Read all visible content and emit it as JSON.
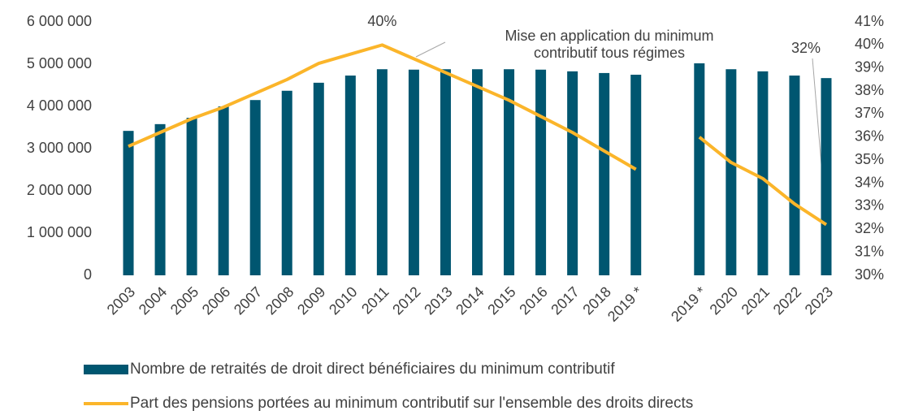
{
  "chart_data": {
    "type": "bar",
    "categories": [
      "2003",
      "2004",
      "2005",
      "2006",
      "2007",
      "2008",
      "2009",
      "2010",
      "2011",
      "2012",
      "2013",
      "2014",
      "2015",
      "2016",
      "2017",
      "2018",
      "2019 *",
      null,
      "2019 *",
      "2020",
      "2021",
      "2022",
      "2023"
    ],
    "series": [
      {
        "name": "Nombre de retraités de droit direct bénéficiaires du minimum contributif",
        "type": "bar",
        "color": "#005670",
        "values": [
          3420000,
          3580000,
          3730000,
          4000000,
          4150000,
          4370000,
          4560000,
          4730000,
          4880000,
          4870000,
          4880000,
          4880000,
          4880000,
          4870000,
          4830000,
          4790000,
          4750000,
          null,
          5020000,
          4880000,
          4830000,
          4730000,
          4670000
        ]
      },
      {
        "name": "Part des pensions portées au minimum contributif sur l'ensemble des droits directs",
        "type": "line",
        "color": "#fbb52a",
        "axis": "y2",
        "values": [
          35.6,
          36.2,
          36.8,
          37.3,
          37.9,
          38.5,
          39.2,
          39.6,
          40,
          39.4,
          38.8,
          38.2,
          37.6,
          36.9,
          36.2,
          35.4,
          34.6,
          null,
          36.0,
          34.9,
          34.2,
          33.1,
          32.2
        ],
        "value_labels": [
          null,
          null,
          null,
          null,
          null,
          null,
          null,
          null,
          "40%",
          null,
          null,
          null,
          null,
          null,
          null,
          null,
          null,
          null,
          null,
          null,
          null,
          null,
          "32%"
        ]
      }
    ],
    "ylim": [
      0,
      6000000
    ],
    "yticks": [
      0,
      {
        "value": 1000000,
        "label": "1 000 000"
      },
      {
        "value": 2000000,
        "label": "2 000 000"
      },
      {
        "value": 3000000,
        "label": "3 000 000"
      },
      {
        "value": 4000000,
        "label": "4 000 000"
      },
      {
        "value": 5000000,
        "label": "5 000 000"
      },
      {
        "value": 6000000,
        "label": "6 000 000"
      }
    ],
    "y2lim": [
      30,
      41
    ],
    "y2ticks": [
      {
        "value": 30,
        "label": "30%"
      },
      {
        "value": 31,
        "label": "31%"
      },
      {
        "value": 32,
        "label": "32%"
      },
      {
        "value": 33,
        "label": "33%"
      },
      {
        "value": 34,
        "label": "34%"
      },
      {
        "value": 35,
        "label": "35%"
      },
      {
        "value": 36,
        "label": "36%"
      },
      {
        "value": 37,
        "label": "37%"
      },
      {
        "value": 38,
        "label": "38%"
      },
      {
        "value": 39,
        "label": "39%"
      },
      {
        "value": 40,
        "label": "40%"
      },
      {
        "value": 41,
        "label": "41%"
      }
    ],
    "annotation": [
      "Mise en application du minimum",
      "contributif tous régimes"
    ],
    "legend": "bottom",
    "grid": false
  }
}
